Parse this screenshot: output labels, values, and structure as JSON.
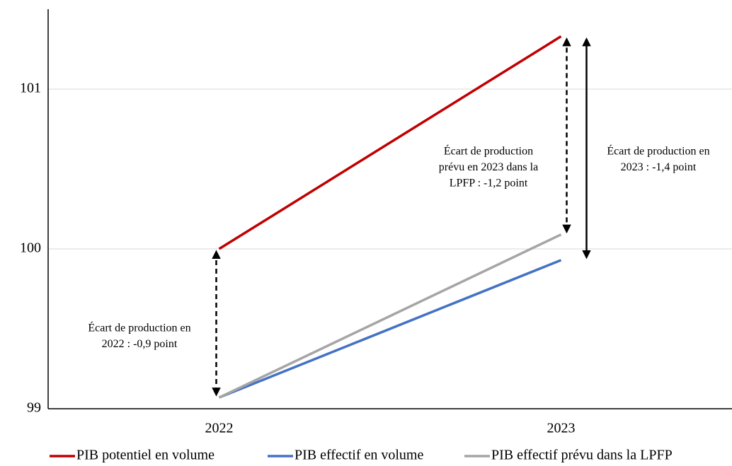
{
  "chart_data": {
    "type": "line",
    "categories": [
      "2022",
      "2023"
    ],
    "series": [
      {
        "name": "PIB potentiel en volume",
        "color": "#c00000",
        "values": [
          100,
          101.33
        ]
      },
      {
        "name": "PIB effectif en volume",
        "color": "#4472c4",
        "values": [
          99.07,
          99.93
        ]
      },
      {
        "name": "PIB effectif prévu dans la LPFP",
        "color": "#a5a5a5",
        "values": [
          99.07,
          100.09
        ]
      }
    ],
    "ylim": [
      99,
      101.5
    ],
    "yticks": [
      99,
      100,
      101
    ],
    "grid": true,
    "legend": "bottom",
    "annotations": [
      {
        "lines": [
          "Écart de production en",
          "2022 : -0,9 point"
        ]
      },
      {
        "lines": [
          "Écart de production",
          "prévu en 2023 dans la",
          "LPFP : -1,2 point"
        ]
      },
      {
        "lines": [
          "Écart de production en",
          "2023 : -1,4 point"
        ]
      }
    ]
  }
}
